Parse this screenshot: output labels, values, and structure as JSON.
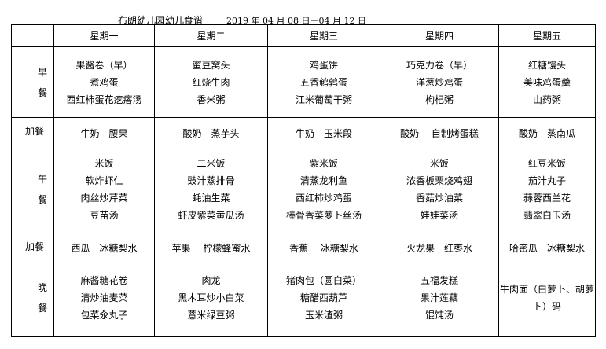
{
  "title": "布朗幼儿园幼儿食谱",
  "date_range": "2019 年 04 月 08 日－04 月 12 日",
  "days": [
    "星期一",
    "星期二",
    "星期三",
    "星期四",
    "星期五"
  ],
  "rows": [
    {
      "label": [
        "早",
        "餐"
      ],
      "cells": [
        [
          "果酱卷（早）",
          "煮鸡蛋",
          "西红柿蛋花疙瘩汤"
        ],
        [
          "蜜豆窝头",
          "红烧牛肉",
          "香米粥"
        ],
        [
          "鸡蛋饼",
          "五香鹌鹑蛋",
          "江米葡萄干粥"
        ],
        [
          "巧克力卷（早）",
          "洋葱炒鸡蛋",
          "枸杞粥"
        ],
        [
          "红糖馒头",
          "美味鸡蛋羹",
          "山药粥"
        ]
      ]
    },
    {
      "label": [
        "加餐"
      ],
      "snack": true,
      "cells": [
        [
          "牛奶　腰果"
        ],
        [
          "酸奶　蒸芋头"
        ],
        [
          "牛奶　玉米段"
        ],
        [
          "酸奶　 自制烤蛋糕"
        ],
        [
          "酸奶　蒸南瓜"
        ]
      ]
    },
    {
      "label": [
        "午",
        "餐"
      ],
      "cells": [
        [
          "米饭",
          "软炸虾仁",
          "肉丝炒芹菜",
          "豆苗汤"
        ],
        [
          "二米饭",
          "豉汁蒸排骨",
          "蚝油生菜",
          "虾皮紫菜黄瓜汤"
        ],
        [
          "紫米饭",
          "清蒸龙利鱼",
          "西红柿炒鸡蛋",
          "棒骨香菜萝卜丝汤"
        ],
        [
          "米饭",
          "浓香板栗烧鸡翅",
          "香菇炒油菜",
          "娃娃菜汤"
        ],
        [
          "红豆米饭",
          "茄汁丸子",
          "蒜蓉西兰花",
          "翡翠白玉汤"
        ]
      ]
    },
    {
      "label": [
        "加餐"
      ],
      "snack": true,
      "cells": [
        [
          "西瓜　冰糖梨水"
        ],
        [
          "苹果　 柠檬蜂蜜水"
        ],
        [
          "香蕉　 冰糖梨水"
        ],
        [
          "火龙果　红枣水"
        ],
        [
          "哈密瓜　冰糖梨水"
        ]
      ]
    },
    {
      "label": [
        "晚",
        "餐"
      ],
      "cells": [
        [
          "麻酱糖花卷",
          "清炒油麦菜",
          "包菜汆丸子"
        ],
        [
          "肉龙",
          "黑木耳炒小白菜",
          "薏米绿豆粥"
        ],
        [
          "猪肉包（圆白菜）",
          "糖醋西葫芦",
          "玉米渣粥"
        ],
        [
          "五福发糕",
          "果汁莲藕",
          "馄饨汤"
        ],
        [
          "牛肉面（白萝卜、胡萝",
          "卜）码"
        ]
      ]
    }
  ]
}
